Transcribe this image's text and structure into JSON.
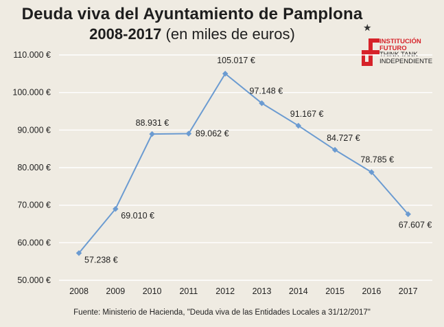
{
  "title": {
    "line1": "Deuda viva del Ayuntamiento de Pamplona",
    "line2_bold": "2008-2017",
    "line2_rest": "(en miles de euros)"
  },
  "logo": {
    "line1": "INSTITUCIÓN",
    "line2": "FUTURO",
    "line3": "THINK TANK",
    "line4": "INDEPENDIENTE",
    "color": "#d62229"
  },
  "source": "Fuente: Ministerio de Hacienda, \"Deuda viva de las Entidades Locales a 31/12/2017\"",
  "chart_data": {
    "type": "line",
    "x": [
      "2008",
      "2009",
      "2010",
      "2011",
      "2012",
      "2013",
      "2014",
      "2015",
      "2016",
      "2017"
    ],
    "series": [
      {
        "values": [
          57238,
          69010,
          88931,
          89062,
          105017,
          97148,
          91167,
          84727,
          78785,
          67607
        ],
        "labels": [
          "57.238 €",
          "69.010 €",
          "88.931 €",
          "89.062 €",
          "105.017 €",
          "97.148 €",
          "91.167 €",
          "84.727 €",
          "78.785 €",
          "67.607 €"
        ]
      }
    ],
    "yticks": [
      50000,
      60000,
      70000,
      80000,
      90000,
      100000,
      110000
    ],
    "ytick_labels": [
      "50.000 €",
      "60.000 €",
      "70.000 €",
      "80.000 €",
      "90.000 €",
      "100.000 €",
      "110.000 €"
    ],
    "ylim": [
      50000,
      110000
    ],
    "grid": true,
    "line_color": "#6b9bd1",
    "grid_color": "#ffffff"
  }
}
